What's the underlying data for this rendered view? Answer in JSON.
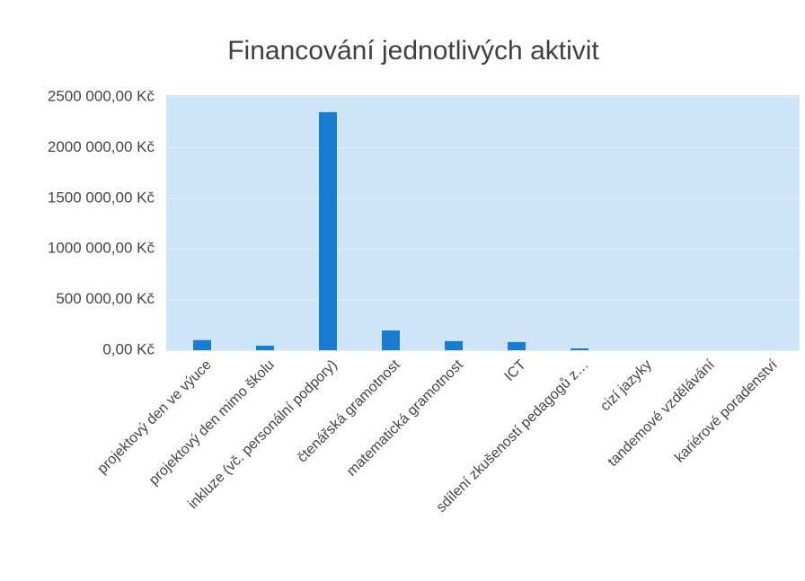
{
  "chart_data": {
    "type": "bar",
    "title": "Financování jednotlivých aktivit",
    "categories": [
      "projektový den ve výuce",
      "projektový den mimo školu",
      "inkluze (vč. personální podpory)",
      "čtenářská gramotnost",
      "matematická gramotnost",
      "ICT",
      "sdílení zkušeností pedagogů z…",
      "cizí jazyky",
      "tandemové vzdělávání",
      "kariérové poradenství"
    ],
    "values": [
      100000,
      45000,
      2350000,
      195000,
      90000,
      80000,
      18000,
      0,
      0,
      0
    ],
    "color": "#1a7cd0",
    "ylim": [
      0,
      2500000
    ],
    "yticks": [
      {
        "value": 0,
        "label": "0,00 Kč"
      },
      {
        "value": 500000,
        "label": "500 000,00 Kč"
      },
      {
        "value": 1000000,
        "label": "1000 000,00 Kč"
      },
      {
        "value": 1500000,
        "label": "1500 000,00 Kč"
      },
      {
        "value": 2000000,
        "label": "2000 000,00 Kč"
      },
      {
        "value": 2500000,
        "label": "2500 000,00 Kč"
      }
    ],
    "grid": true
  }
}
